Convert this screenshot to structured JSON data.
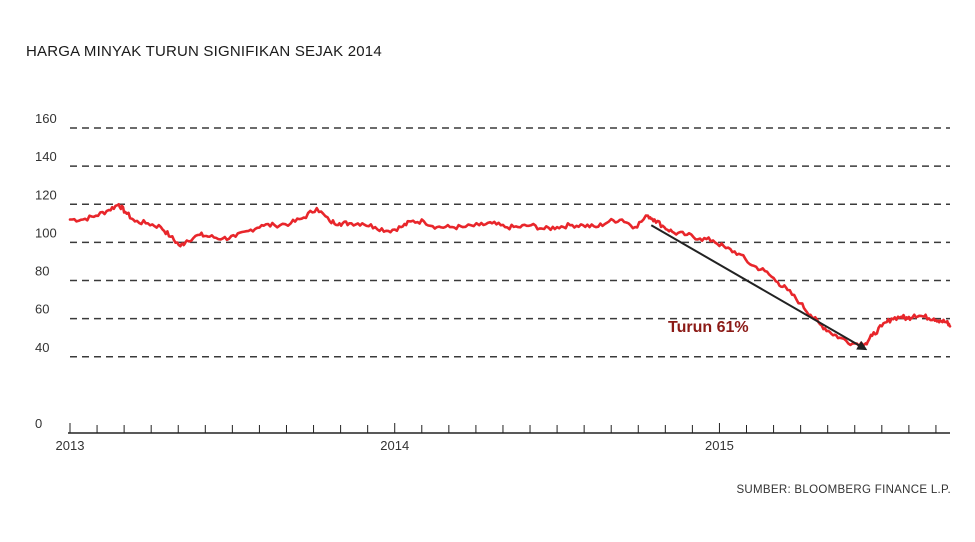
{
  "title": "HARGA MINYAK TURUN SIGNIFIKAN SEJAK 2014",
  "source": "SUMBER: BLOOMBERG FINANCE L.P.",
  "colors": {
    "line": "#e8262b",
    "grid": "#3a3a3a",
    "axis": "#222222",
    "arrow": "#222222",
    "annotation": "#8b1a16"
  },
  "chart_data": {
    "type": "line",
    "title": "HARGA MINYAK TURUN SIGNIFIKAN SEJAK 2014",
    "xlabel": "",
    "ylabel": "",
    "ylim": [
      0,
      160
    ],
    "xlim": [
      2013.0,
      2015.71
    ],
    "yticks": [
      0,
      40,
      60,
      80,
      100,
      120,
      140,
      160
    ],
    "y_tick_labels": [
      "0",
      "40",
      "60",
      "80",
      "100",
      "120",
      "140",
      "160"
    ],
    "gridlines": [
      40,
      60,
      80,
      100,
      120,
      140,
      160
    ],
    "x_tick_labels": [
      {
        "x": 2013,
        "label": "2013"
      },
      {
        "x": 2014,
        "label": "2014"
      },
      {
        "x": 2015,
        "label": "2015"
      }
    ],
    "grid": true,
    "series": [
      {
        "x": [
          2013.0,
          2013.04,
          2013.08,
          2013.12,
          2013.15,
          2013.17,
          2013.2,
          2013.24,
          2013.28,
          2013.31,
          2013.34,
          2013.36,
          2013.4,
          2013.43,
          2013.47,
          2013.51,
          2013.55,
          2013.59,
          2013.63,
          2013.68,
          2013.72,
          2013.76,
          2013.8,
          2013.83,
          2013.86,
          2013.9,
          2013.94,
          2013.98,
          2014.02,
          2014.05,
          2014.09,
          2014.13,
          2014.17,
          2014.21,
          2014.26,
          2014.3,
          2014.34,
          2014.38,
          2014.42,
          2014.46,
          2014.5,
          2014.54,
          2014.58,
          2014.62,
          2014.66,
          2014.7,
          2014.74,
          2014.78,
          2014.8,
          2014.83,
          2014.86,
          2014.9,
          2014.94,
          2014.98,
          2015.02,
          2015.06,
          2015.1,
          2015.14,
          2015.18,
          2015.21,
          2015.25,
          2015.28,
          2015.31,
          2015.34,
          2015.37,
          2015.41,
          2015.45,
          2015.47,
          2015.5,
          2015.53,
          2015.56,
          2015.58,
          2015.6,
          2015.63,
          2015.66,
          2015.68,
          2015.7,
          2015.71
        ],
        "values": [
          112,
          112,
          114,
          117,
          120,
          116,
          111,
          110,
          108,
          103,
          98,
          101,
          104,
          103,
          102,
          103,
          106,
          109,
          109,
          110,
          113,
          118,
          111,
          110,
          110,
          110,
          108,
          106,
          108,
          111,
          111,
          108,
          108,
          108,
          109,
          110,
          108,
          108,
          109,
          107,
          108,
          109,
          109,
          108,
          111,
          112,
          108,
          114,
          112,
          108,
          105,
          104,
          102,
          101,
          97,
          94,
          88,
          85,
          79,
          75,
          68,
          62,
          57,
          53,
          50,
          47,
          47,
          51,
          56,
          60,
          61,
          60,
          62,
          61,
          60,
          59,
          58,
          56
        ]
      }
    ],
    "annotations": [
      {
        "text": "Turun 61%",
        "type": "arrow",
        "from": [
          2014.79,
          109
        ],
        "to": [
          2015.45,
          44
        ]
      }
    ]
  }
}
